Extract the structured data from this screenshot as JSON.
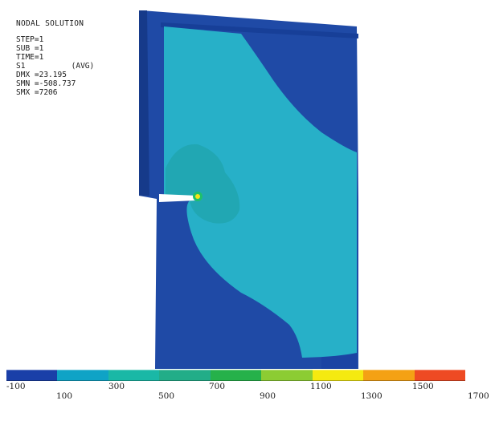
{
  "info": {
    "title": "NODAL SOLUTION",
    "lines": [
      "STEP=1",
      "SUB =1",
      "TIME=1",
      "S1          (AVG)",
      "DMX =23.195",
      "SMN =-508.737",
      "SMX =7206"
    ]
  },
  "legend": {
    "bands": [
      {
        "color": "#1a3fa8"
      },
      {
        "color": "#0fa3c6"
      },
      {
        "color": "#1ab8a6"
      },
      {
        "color": "#22ad88"
      },
      {
        "color": "#26b14a"
      },
      {
        "color": "#8ccc33"
      },
      {
        "color": "#f5ea10"
      },
      {
        "color": "#f4a114"
      },
      {
        "color": "#ee4a23"
      }
    ],
    "ticks_lower": [
      "-100",
      "300",
      "700",
      "1100",
      "1500"
    ],
    "ticks_upper": [
      "100",
      "500",
      "900",
      "1300",
      "1700"
    ]
  },
  "model": {
    "colors": {
      "outer": "#1f4aa6",
      "shadow": "#163a8a",
      "stressField": "#27b0c8",
      "stressCore": "#21a7b3",
      "hotspot": "#f7e21a"
    }
  }
}
